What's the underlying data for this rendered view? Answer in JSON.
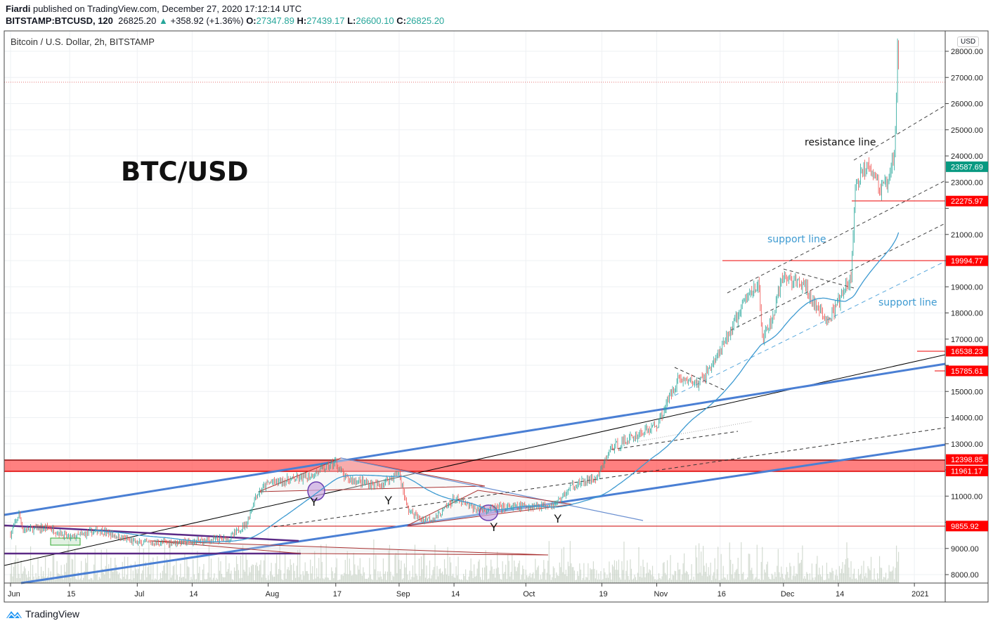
{
  "header": {
    "author": "Fiardi",
    "published": "published on TradingView.com, December 27, 2020 17:12:14 UTC",
    "symbol": "BITSTAMP:BTCUSD, 120",
    "last": "26825.20",
    "change": "+358.92 (+1.36%)",
    "o_label": "O:",
    "o": "27347.89",
    "h_label": "H:",
    "h": "27439.17",
    "l_label": "L:",
    "l": "26600.10",
    "c_label": "C:",
    "c": "26825.20"
  },
  "legend": "Bitcoin / U.S. Dollar, 2h, BITSTAMP",
  "currency": "USD",
  "footer": {
    "brand": "TradingView"
  },
  "annotations": {
    "title": "BTC/USD",
    "resistance": "resistance line",
    "support1": "support line",
    "support2": "support line",
    "y_marks": [
      "Y",
      "Y",
      "Y",
      "Y"
    ]
  },
  "chart_data": {
    "type": "candlestick",
    "title": "Bitcoin / U.S. Dollar, 2h, BITSTAMP",
    "x_unit": "days since Jun 1 2020",
    "ylim": [
      7700,
      28600
    ],
    "y_ticks": [
      8000,
      9000,
      10000,
      11000,
      12000,
      13000,
      14000,
      15000,
      16000,
      17000,
      18000,
      19000,
      20000,
      21000,
      22000,
      23000,
      24000,
      25000,
      26000,
      27000,
      28000
    ],
    "x_ticks": [
      {
        "day": 0,
        "label": "Jun"
      },
      {
        "day": 14,
        "label": "15"
      },
      {
        "day": 30,
        "label": "Jul"
      },
      {
        "day": 43,
        "label": "14"
      },
      {
        "day": 61,
        "label": "Aug"
      },
      {
        "day": 77,
        "label": "17"
      },
      {
        "day": 92,
        "label": "Sep"
      },
      {
        "day": 105,
        "label": "14"
      },
      {
        "day": 122,
        "label": "Oct"
      },
      {
        "day": 140,
        "label": "19"
      },
      {
        "day": 153,
        "label": "Nov"
      },
      {
        "day": 168,
        "label": "16"
      },
      {
        "day": 183,
        "label": "Dec"
      },
      {
        "day": 196,
        "label": "14"
      },
      {
        "day": 214,
        "label": "2021"
      }
    ],
    "price_path": [
      [
        0,
        9550
      ],
      [
        2,
        10300
      ],
      [
        3,
        9700
      ],
      [
        9,
        9800
      ],
      [
        14,
        9400
      ],
      [
        21,
        9700
      ],
      [
        30,
        9200
      ],
      [
        43,
        9250
      ],
      [
        52,
        9400
      ],
      [
        56,
        10000
      ],
      [
        58,
        11000
      ],
      [
        61,
        11500
      ],
      [
        70,
        11700
      ],
      [
        77,
        12300
      ],
      [
        79,
        11700
      ],
      [
        87,
        11400
      ],
      [
        92,
        11900
      ],
      [
        94,
        10500
      ],
      [
        97,
        10100
      ],
      [
        101,
        10200
      ],
      [
        105,
        10900
      ],
      [
        110,
        10500
      ],
      [
        122,
        10600
      ],
      [
        129,
        10700
      ],
      [
        133,
        11400
      ],
      [
        139,
        11700
      ],
      [
        142,
        12800
      ],
      [
        149,
        13400
      ],
      [
        153,
        13700
      ],
      [
        158,
        15500
      ],
      [
        163,
        15300
      ],
      [
        168,
        16500
      ],
      [
        174,
        18500
      ],
      [
        177,
        19200
      ],
      [
        178,
        17000
      ],
      [
        180,
        17600
      ],
      [
        183,
        19400
      ],
      [
        188,
        19000
      ],
      [
        192,
        17900
      ],
      [
        194,
        17800
      ],
      [
        199,
        19300
      ],
      [
        200,
        22800
      ],
      [
        203,
        23800
      ],
      [
        206,
        22700
      ],
      [
        208,
        23000
      ],
      [
        208.5,
        23400
      ],
      [
        208.8,
        24000
      ],
      [
        209,
        23600
      ],
      [
        209.5,
        24800
      ],
      [
        210,
        28200
      ],
      [
        210.4,
        26825.2
      ]
    ],
    "levels": [
      {
        "price": 23587.69,
        "label": "23587.69",
        "color": "#089981"
      },
      {
        "price": 22275.97,
        "label": "22275.97",
        "color": "#ff0000"
      },
      {
        "price": 19994.77,
        "label": "19994.77",
        "color": "#ff0000"
      },
      {
        "price": 16538.23,
        "label": "16538.23",
        "color": "#ff0000"
      },
      {
        "price": 15785.61,
        "label": "15785.61",
        "color": "#ff0000"
      },
      {
        "price": 12398.85,
        "label": "12398.85",
        "color": "#ff0000"
      },
      {
        "price": 11961.17,
        "label": "11961.17",
        "color": "#ff0000"
      },
      {
        "price": 9855.92,
        "label": "9855.92",
        "color": "#ff0000"
      }
    ],
    "colors": {
      "up": "#26a69a",
      "down": "#ef5350",
      "ma": "#3d9ad1",
      "volume": "#b7c4b4"
    }
  }
}
